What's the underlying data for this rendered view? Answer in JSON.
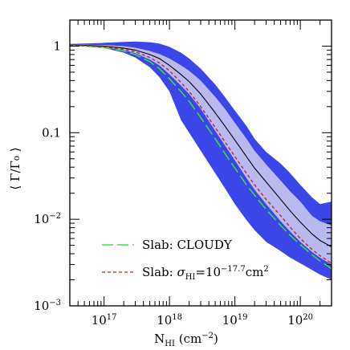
{
  "chart_data": {
    "type": "line",
    "xscale": "log",
    "yscale": "log",
    "xlim": [
      3e+16,
      3e+20
    ],
    "ylim": [
      0.001,
      2
    ],
    "xticks": [
      {
        "value": 1e+17,
        "label": "10",
        "exp": "17"
      },
      {
        "value": 1e+18,
        "label": "10",
        "exp": "18"
      },
      {
        "value": 1e+19,
        "label": "10",
        "exp": "19"
      },
      {
        "value": 1e+20,
        "label": "10",
        "exp": "20"
      }
    ],
    "yticks": [
      {
        "value": 1,
        "label": "1",
        "exp": ""
      },
      {
        "value": 0.1,
        "label": "0.1",
        "exp": ""
      },
      {
        "value": 0.01,
        "label": "10",
        "exp": "−2"
      },
      {
        "value": 0.001,
        "label": "10",
        "exp": "−3"
      }
    ],
    "xlabel": {
      "main": "N",
      "sub": "HI",
      "rest": " (cm",
      "exp": "−2",
      "close": ")"
    },
    "ylabel": "⟨ Γ/Γ₀ ⟩",
    "legend": [
      {
        "text": "Slab: CLOUDY",
        "style": "long-dash",
        "color": "#33ee33"
      },
      {
        "prefix": "Slab: ",
        "sym": "σ",
        "sub": "HI",
        "eq": "=10",
        "exp": "−17.7",
        "unit": "cm",
        "unit_exp": "2",
        "style": "dashed",
        "color": "#cc2222"
      }
    ],
    "colors": {
      "outer_band": "#3b45e8",
      "inner_band": "#b9b9f0",
      "median": "#000000"
    },
    "outer_band": {
      "x": [
        3e+16,
        5e+16,
        1e+17,
        2e+17,
        3e+17,
        5e+17,
        7e+17,
        1e+18,
        1.5e+18,
        2e+18,
        3e+18,
        5e+18,
        7e+18,
        1e+19,
        1.5e+19,
        2e+19,
        3e+19,
        5e+19,
        7e+19,
        1e+20,
        1.5e+20,
        2e+20,
        3e+20
      ],
      "upper": [
        1.06,
        1.07,
        1.09,
        1.12,
        1.13,
        1.11,
        1.07,
        0.98,
        0.84,
        0.72,
        0.55,
        0.36,
        0.26,
        0.18,
        0.12,
        0.085,
        0.06,
        0.044,
        0.034,
        0.025,
        0.018,
        0.015,
        0.016
      ],
      "lower": [
        1.0,
        0.99,
        0.95,
        0.84,
        0.74,
        0.57,
        0.44,
        0.3,
        0.14,
        0.1,
        0.062,
        0.034,
        0.023,
        0.015,
        0.0098,
        0.0075,
        0.0055,
        0.0043,
        0.0036,
        0.0031,
        0.0026,
        0.0023,
        0.002
      ]
    },
    "inner_band": {
      "x": [
        3e+16,
        5e+16,
        1e+17,
        2e+17,
        3e+17,
        5e+17,
        7e+17,
        1e+18,
        1.5e+18,
        2e+18,
        3e+18,
        5e+18,
        7e+18,
        1e+19,
        1.5e+19,
        2e+19,
        3e+19,
        5e+19,
        7e+19,
        1e+20,
        1.5e+20,
        2e+20,
        3e+20
      ],
      "upper": [
        1.04,
        1.04,
        1.03,
        1.0,
        0.96,
        0.88,
        0.81,
        0.72,
        0.6,
        0.52,
        0.4,
        0.26,
        0.19,
        0.13,
        0.085,
        0.062,
        0.043,
        0.028,
        0.021,
        0.016,
        0.011,
        0.0095,
        0.0085
      ],
      "lower": [
        1.02,
        1.0,
        0.97,
        0.9,
        0.83,
        0.7,
        0.6,
        0.47,
        0.35,
        0.28,
        0.19,
        0.105,
        0.072,
        0.048,
        0.03,
        0.022,
        0.015,
        0.0095,
        0.0072,
        0.0055,
        0.0042,
        0.0036,
        0.003
      ]
    },
    "series": [
      {
        "name": "",
        "style": "solid",
        "color": "#000000",
        "x": [
          3e+16,
          5e+16,
          1e+17,
          2e+17,
          3e+17,
          5e+17,
          7e+17,
          1e+18,
          1.5e+18,
          2e+18,
          3e+18,
          5e+18,
          7e+18,
          1e+19,
          1.5e+19,
          2e+19,
          3e+19,
          5e+19,
          7e+19,
          1e+20,
          1.5e+20,
          2e+20,
          3e+20
        ],
        "y": [
          1.03,
          1.02,
          1.0,
          0.95,
          0.9,
          0.8,
          0.72,
          0.6,
          0.47,
          0.39,
          0.28,
          0.17,
          0.12,
          0.082,
          0.053,
          0.039,
          0.027,
          0.017,
          0.0125,
          0.0093,
          0.0068,
          0.0057,
          0.0048
        ]
      },
      {
        "name": "Slab: CLOUDY",
        "style": "long-dash",
        "color": "#33ee33",
        "x": [
          3e+16,
          5e+16,
          1e+17,
          2e+17,
          3e+17,
          5e+17,
          7e+17,
          1e+18,
          1.5e+18,
          2e+18,
          3e+18,
          5e+18,
          7e+18,
          1e+19,
          1.5e+19,
          2e+19,
          3e+19,
          5e+19,
          7e+19,
          1e+20,
          1.5e+20,
          2e+20,
          3e+20
        ],
        "y": [
          1.02,
          1.0,
          0.96,
          0.88,
          0.8,
          0.66,
          0.55,
          0.42,
          0.3,
          0.23,
          0.15,
          0.085,
          0.058,
          0.039,
          0.025,
          0.019,
          0.013,
          0.0085,
          0.0065,
          0.0051,
          0.0039,
          0.0033,
          0.0027
        ]
      },
      {
        "name": "Slab: σHI=10−17.7cm2",
        "style": "dashed",
        "color": "#cc2222",
        "x": [
          3e+16,
          5e+16,
          1e+17,
          2e+17,
          3e+17,
          5e+17,
          7e+17,
          1e+18,
          1.5e+18,
          2e+18,
          3e+18,
          5e+18,
          7e+18,
          1e+19,
          1.5e+19,
          2e+19,
          3e+19,
          5e+19,
          7e+19,
          1e+20,
          1.5e+20,
          2e+20,
          3e+20
        ],
        "y": [
          1.03,
          1.01,
          0.98,
          0.92,
          0.86,
          0.74,
          0.64,
          0.52,
          0.38,
          0.3,
          0.2,
          0.115,
          0.079,
          0.053,
          0.034,
          0.025,
          0.017,
          0.011,
          0.0081,
          0.006,
          0.0045,
          0.0038,
          0.0031
        ]
      }
    ]
  }
}
